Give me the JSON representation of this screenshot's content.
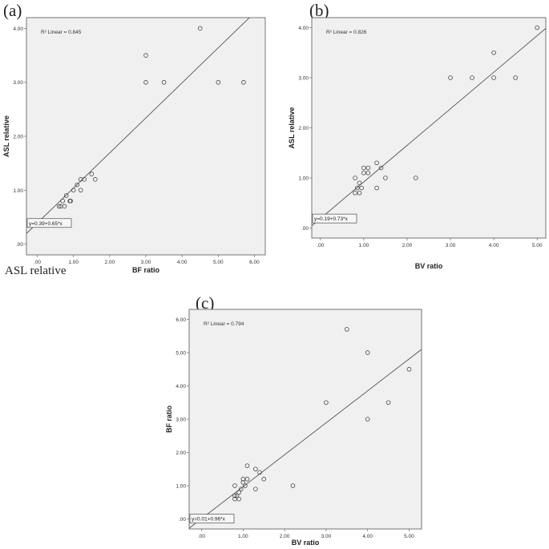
{
  "panel_labels": [
    "(a)",
    "(b)",
    "(c)"
  ],
  "stray_text": "ASL relative",
  "chart_data": [
    {
      "type": "scatter",
      "panel": "(a)",
      "xlabel": "BF ratio",
      "ylabel": "ASL relative",
      "xlim": [
        -0.3,
        6.3
      ],
      "ylim": [
        -0.2,
        4.2
      ],
      "xticks": [
        ".00",
        "1.00",
        "2.00",
        "3.00",
        "4.00",
        "5.00",
        "6.00"
      ],
      "yticks": [
        ".00",
        "1.00",
        "2.00",
        "3.00",
        "4.00"
      ],
      "r2_label": "R² Linear = 0.845",
      "equation": "y=0.39+0.65*x",
      "fit": {
        "intercept": 0.39,
        "slope": 0.65
      },
      "points": [
        [
          0.6,
          0.7
        ],
        [
          0.65,
          0.7
        ],
        [
          0.7,
          0.8
        ],
        [
          0.75,
          0.7
        ],
        [
          0.8,
          0.9
        ],
        [
          0.9,
          0.8
        ],
        [
          0.92,
          0.8
        ],
        [
          1.0,
          1.0
        ],
        [
          1.1,
          1.1
        ],
        [
          1.2,
          1.0
        ],
        [
          1.2,
          1.2
        ],
        [
          1.3,
          1.2
        ],
        [
          1.5,
          1.3
        ],
        [
          1.6,
          1.2
        ],
        [
          3.0,
          3.0
        ],
        [
          3.0,
          3.5
        ],
        [
          3.5,
          3.0
        ],
        [
          4.5,
          4.0
        ],
        [
          5.0,
          3.0
        ],
        [
          5.7,
          3.0
        ]
      ]
    },
    {
      "type": "scatter",
      "panel": "(b)",
      "xlabel": "BV ratio",
      "ylabel": "ASL relative",
      "xlim": [
        -0.2,
        5.2
      ],
      "ylim": [
        -0.2,
        4.2
      ],
      "xticks": [
        ".00",
        "1.00",
        "2.00",
        "3.00",
        "4.00",
        "5.00"
      ],
      "yticks": [
        ".00",
        "1.00",
        "2.00",
        "3.00",
        "4.00"
      ],
      "r2_label": "R² Linear = 0.826",
      "equation": "y=0.19+0.73*x",
      "fit": {
        "intercept": 0.19,
        "slope": 0.73
      },
      "points": [
        [
          0.8,
          0.7
        ],
        [
          0.85,
          0.8
        ],
        [
          0.9,
          0.7
        ],
        [
          0.9,
          0.9
        ],
        [
          0.95,
          0.8
        ],
        [
          1.0,
          1.1
        ],
        [
          1.0,
          1.2
        ],
        [
          1.1,
          1.1
        ],
        [
          1.1,
          1.2
        ],
        [
          1.3,
          0.8
        ],
        [
          1.3,
          1.3
        ],
        [
          1.4,
          1.2
        ],
        [
          1.5,
          1.0
        ],
        [
          2.2,
          1.0
        ],
        [
          0.8,
          1.0
        ],
        [
          3.0,
          3.0
        ],
        [
          3.5,
          3.0
        ],
        [
          4.0,
          3.5
        ],
        [
          4.0,
          3.0
        ],
        [
          4.5,
          3.0
        ],
        [
          5.0,
          4.0
        ]
      ]
    },
    {
      "type": "scatter",
      "panel": "(c)",
      "xlabel": "BV ratio",
      "ylabel": "BF ratio",
      "xlim": [
        -0.3,
        5.3
      ],
      "ylim": [
        -0.3,
        6.3
      ],
      "xticks": [
        ".00",
        "1.00",
        "2.00",
        "3.00",
        "4.00",
        "5.00"
      ],
      "yticks": [
        ".00",
        "1.00",
        "2.00",
        "3.00",
        "4.00",
        "5.00",
        "6.00"
      ],
      "r2_label": "R² Linear = 0.794",
      "equation": "y=0.01+0.96*x",
      "fit": {
        "intercept": 0.01,
        "slope": 0.96
      },
      "points": [
        [
          0.8,
          0.6
        ],
        [
          0.8,
          0.7
        ],
        [
          0.85,
          0.7
        ],
        [
          0.9,
          0.8
        ],
        [
          0.9,
          0.6
        ],
        [
          0.95,
          0.9
        ],
        [
          1.0,
          1.1
        ],
        [
          1.0,
          1.2
        ],
        [
          1.05,
          1.0
        ],
        [
          1.1,
          1.6
        ],
        [
          1.1,
          1.2
        ],
        [
          1.3,
          1.5
        ],
        [
          1.3,
          0.9
        ],
        [
          1.4,
          1.4
        ],
        [
          1.5,
          1.2
        ],
        [
          0.8,
          1.0
        ],
        [
          2.2,
          1.0
        ],
        [
          3.0,
          3.5
        ],
        [
          3.5,
          5.7
        ],
        [
          4.0,
          5.0
        ],
        [
          4.0,
          3.0
        ],
        [
          4.5,
          3.5
        ],
        [
          5.0,
          4.5
        ]
      ]
    }
  ]
}
